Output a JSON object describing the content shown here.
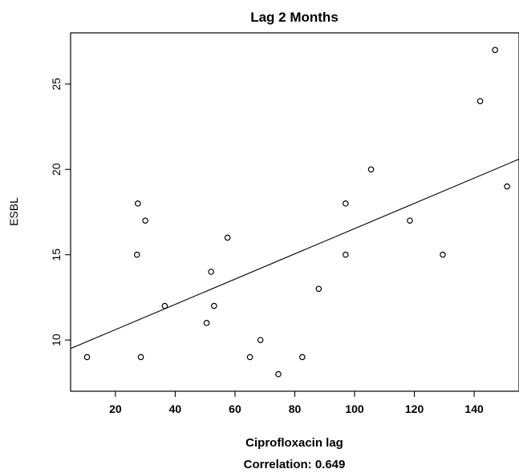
{
  "chart_data": {
    "type": "scatter",
    "title": "Lag 2 Months",
    "xlabel": "Ciprofloxacin lag",
    "ylabel": "ESBL",
    "caption": "Correlation: 0.649",
    "xlim": [
      5,
      155
    ],
    "ylim": [
      7,
      28
    ],
    "x_ticks": [
      20,
      40,
      60,
      80,
      100,
      120,
      140
    ],
    "y_ticks": [
      10,
      15,
      20,
      25
    ],
    "grid": false,
    "points": [
      {
        "x": 10.5,
        "y": 9
      },
      {
        "x": 27.5,
        "y": 18
      },
      {
        "x": 27.2,
        "y": 15
      },
      {
        "x": 28.5,
        "y": 9
      },
      {
        "x": 30.0,
        "y": 17
      },
      {
        "x": 36.5,
        "y": 12
      },
      {
        "x": 50.5,
        "y": 11
      },
      {
        "x": 52.0,
        "y": 14
      },
      {
        "x": 53.0,
        "y": 12
      },
      {
        "x": 57.5,
        "y": 16
      },
      {
        "x": 65.0,
        "y": 9
      },
      {
        "x": 68.5,
        "y": 10
      },
      {
        "x": 74.5,
        "y": 8
      },
      {
        "x": 82.5,
        "y": 9
      },
      {
        "x": 88.0,
        "y": 13
      },
      {
        "x": 97.0,
        "y": 15
      },
      {
        "x": 97.0,
        "y": 18
      },
      {
        "x": 105.5,
        "y": 20
      },
      {
        "x": 118.5,
        "y": 17
      },
      {
        "x": 129.5,
        "y": 15
      },
      {
        "x": 142.0,
        "y": 24
      },
      {
        "x": 147.0,
        "y": 27
      },
      {
        "x": 151.0,
        "y": 19
      }
    ],
    "regression_line": {
      "x": [
        5,
        155
      ],
      "y": [
        9.5,
        20.6
      ]
    }
  }
}
